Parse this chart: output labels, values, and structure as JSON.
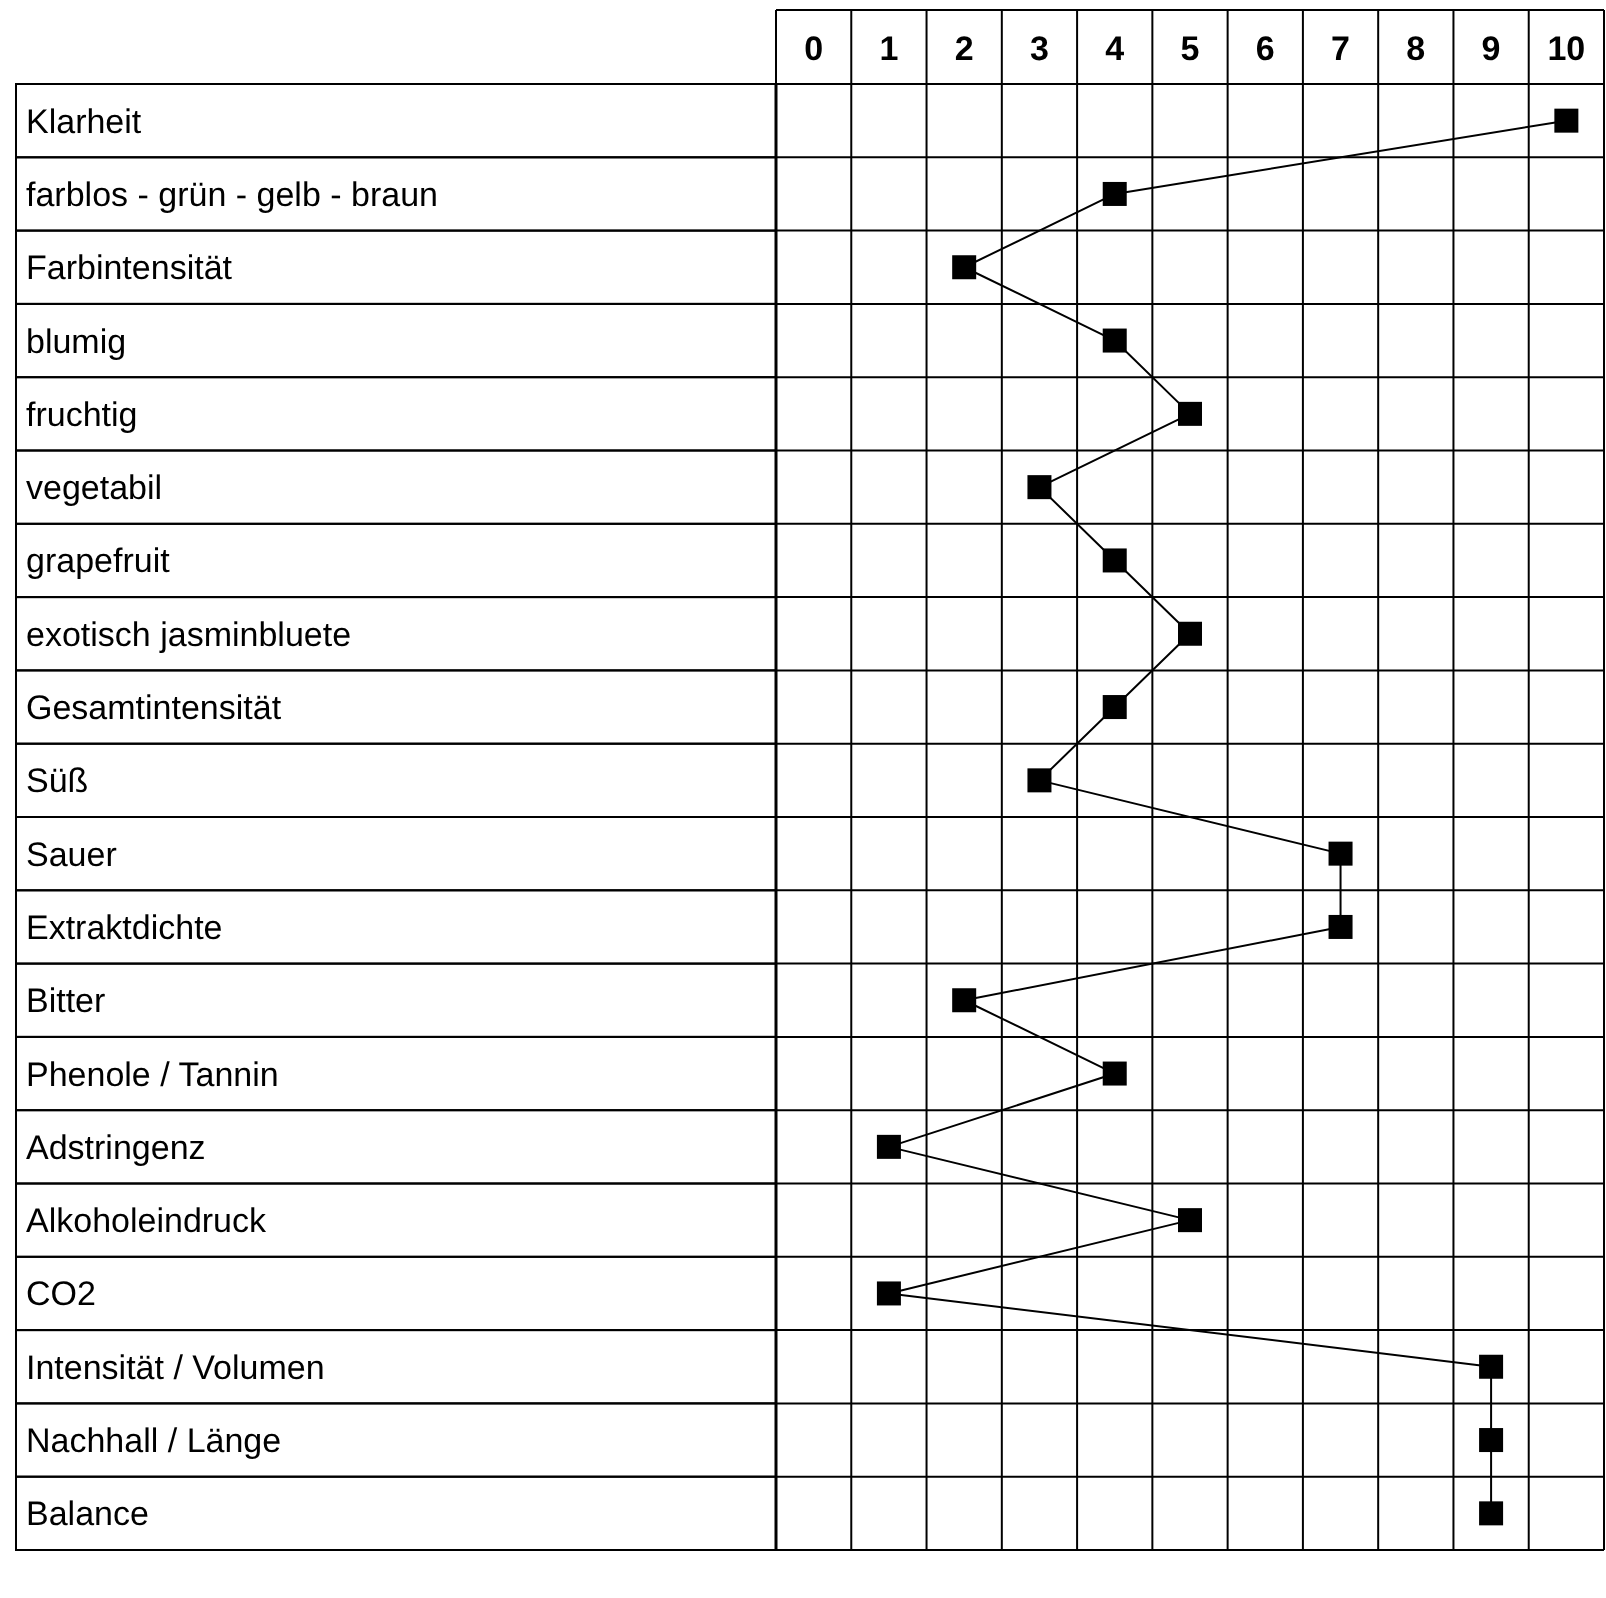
{
  "chart_data": {
    "type": "line",
    "orientation": "horizontal",
    "categories": [
      "Klarheit",
      "farblos  - grün - gelb - braun",
      "Farbintensität",
      "blumig",
      "fruchtig",
      "vegetabil",
      "grapefruit",
      "exotisch jasminbluete",
      "Gesamtintensität",
      "Süß",
      "Sauer",
      "Extraktdichte",
      "Bitter",
      "Phenole / Tannin",
      "Adstringenz",
      "Alkoholeindruck",
      "CO2",
      "Intensität / Volumen",
      "Nachhall / Länge",
      "Balance"
    ],
    "series": [
      {
        "axis": "x2",
        "color": "#000000",
        "values": [
          10,
          4,
          2,
          4,
          5,
          3,
          4,
          5,
          4,
          3,
          7,
          7,
          2,
          4,
          1,
          5,
          1,
          9,
          9,
          9
        ]
      }
    ],
    "marker": "square",
    "line_style": "solid",
    "grid": true,
    "x2lim": [
      -0.5,
      10.5
    ],
    "x2ticks": [
      0,
      1,
      2,
      3,
      4,
      5,
      6,
      7,
      8,
      9,
      10
    ]
  }
}
